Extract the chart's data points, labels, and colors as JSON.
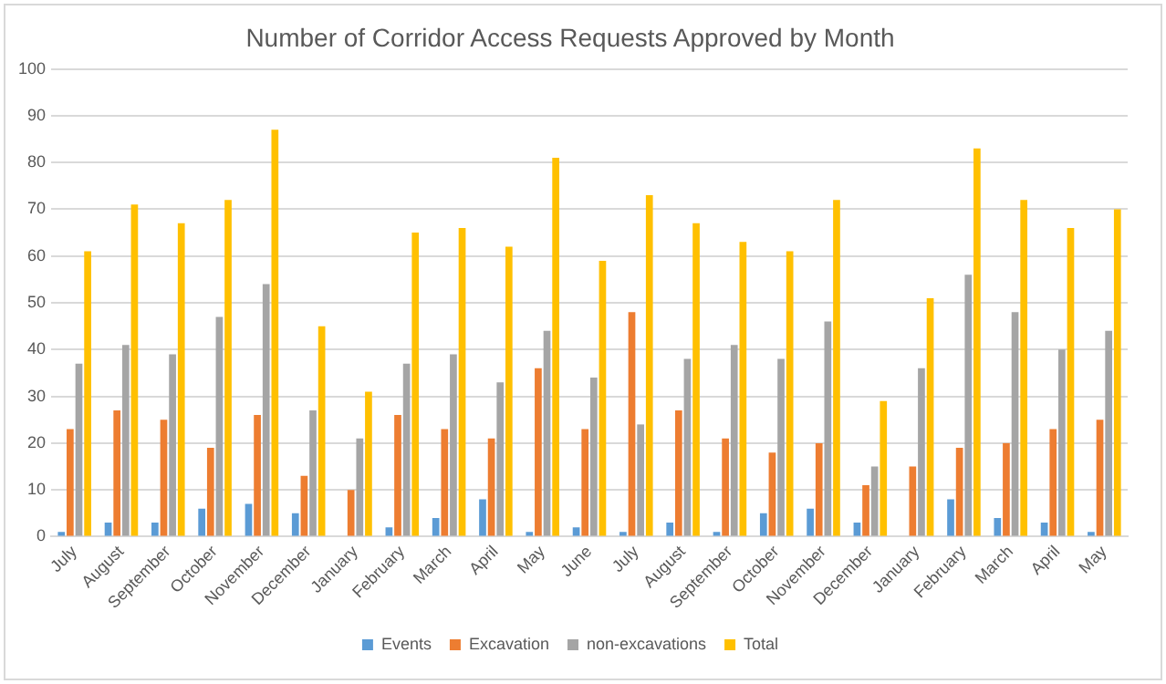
{
  "chart_data": {
    "type": "bar",
    "title": "Number of Corridor Access Requests Approved by Month",
    "categories": [
      "July",
      "August",
      "September",
      "October",
      "November",
      "December",
      "January",
      "February",
      "March",
      "April",
      "May",
      "June",
      "July",
      "August",
      "September",
      "October",
      "November",
      "December",
      "January",
      "February",
      "March",
      "April",
      "May"
    ],
    "series": [
      {
        "name": "Events",
        "color": "#5b9bd5",
        "values": [
          1,
          3,
          3,
          6,
          7,
          5,
          0,
          2,
          4,
          8,
          1,
          2,
          1,
          3,
          1,
          5,
          6,
          3,
          0,
          8,
          4,
          3,
          1
        ]
      },
      {
        "name": "Excavation",
        "color": "#ed7d31",
        "values": [
          23,
          27,
          25,
          19,
          26,
          13,
          10,
          26,
          23,
          21,
          36,
          23,
          48,
          27,
          21,
          18,
          20,
          11,
          15,
          19,
          20,
          23,
          25
        ]
      },
      {
        "name": "non-excavations",
        "color": "#a5a5a5",
        "values": [
          37,
          41,
          39,
          47,
          54,
          27,
          21,
          37,
          39,
          33,
          44,
          34,
          24,
          38,
          41,
          38,
          46,
          15,
          36,
          56,
          48,
          40,
          44
        ]
      },
      {
        "name": "Total",
        "color": "#ffc000",
        "values": [
          61,
          71,
          67,
          72,
          87,
          45,
          31,
          65,
          66,
          62,
          81,
          59,
          73,
          67,
          63,
          61,
          72,
          29,
          51,
          83,
          72,
          66,
          70
        ]
      }
    ],
    "ylim": [
      0,
      100
    ],
    "yticks": [
      0,
      10,
      20,
      30,
      40,
      50,
      60,
      70,
      80,
      90,
      100
    ],
    "grid": "y",
    "legend": "bottom"
  }
}
